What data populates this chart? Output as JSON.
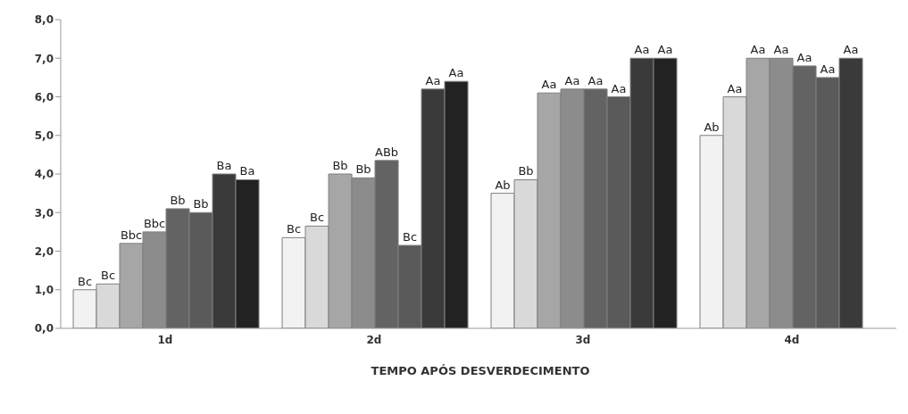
{
  "chart_data": {
    "type": "bar",
    "xlabel": "TEMPO APÓS DESVERDECIMENTO",
    "categories": [
      "1d",
      "2d",
      "3d",
      "4d"
    ],
    "ylim": [
      0,
      8
    ],
    "yticks": [
      {
        "value": 0,
        "label": "0,0"
      },
      {
        "value": 1,
        "label": "1,0"
      },
      {
        "value": 2,
        "label": "2,0"
      },
      {
        "value": 3,
        "label": "3,0"
      },
      {
        "value": 4,
        "label": "4,0"
      },
      {
        "value": 5,
        "label": "5,0"
      },
      {
        "value": 6,
        "label": "6,0"
      },
      {
        "value": 7,
        "label": "7,0"
      },
      {
        "value": 8,
        "label": "8,0"
      }
    ],
    "grid": false,
    "legend": false,
    "series": [
      {
        "color": "#f2f2f2",
        "values": [
          1.0,
          2.35,
          3.5,
          5.0
        ],
        "value_labels": [
          "Bc",
          "Bc",
          "Ab",
          "Ab"
        ]
      },
      {
        "color": "#d9d9d9",
        "values": [
          1.15,
          2.65,
          3.85,
          6.0
        ],
        "value_labels": [
          "Bc",
          "Bc",
          "Bb",
          "Aa"
        ]
      },
      {
        "color": "#a6a6a6",
        "values": [
          2.2,
          4.0,
          6.1,
          7.0
        ],
        "value_labels": [
          "Bbc",
          "Bb",
          "Aa",
          "Aa"
        ]
      },
      {
        "color": "#8c8c8c",
        "values": [
          2.5,
          3.9,
          6.2,
          7.0
        ],
        "value_labels": [
          "Bbc",
          "Bb",
          "Aa",
          "Aa"
        ]
      },
      {
        "color": "#636363",
        "values": [
          3.1,
          4.35,
          6.2,
          6.8
        ],
        "value_labels": [
          "Bb",
          "ABb",
          "Aa",
          "Aa"
        ]
      },
      {
        "color": "#5a5a5a",
        "values": [
          3.0,
          2.15,
          6.0,
          6.5
        ],
        "value_labels": [
          "Bb",
          "Bc",
          "Aa",
          "Aa"
        ]
      },
      {
        "color": "#3a3a3a",
        "values": [
          4.0,
          6.2,
          7.0,
          7.0
        ],
        "value_labels": [
          "Ba",
          "Aa",
          "Aa",
          "Aa"
        ]
      },
      {
        "color": "#222222",
        "values": [
          3.85,
          6.4,
          7.0,
          null
        ],
        "value_labels": [
          "Ba",
          "Aa",
          "Aa",
          null
        ]
      }
    ]
  }
}
